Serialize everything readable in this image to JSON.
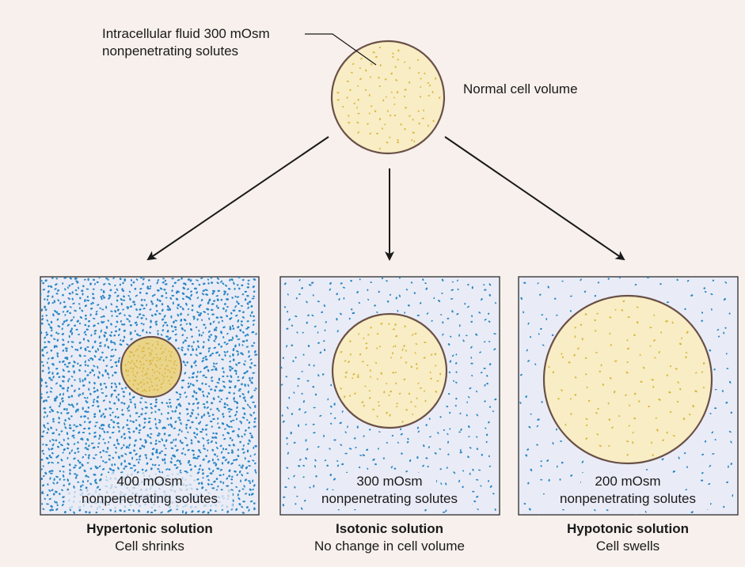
{
  "top": {
    "label_line1": "Intracellular fluid 300 mOsm",
    "label_line2": "nonpenetrating solutes",
    "volume_label": "Normal cell volume"
  },
  "panels": [
    {
      "conc": "400 mOsm",
      "solutes": "nonpenetrating solutes",
      "title": "Hypertonic solution",
      "subtitle": "Cell shrinks"
    },
    {
      "conc": "300 mOsm",
      "solutes": "nonpenetrating solutes",
      "title": "Isotonic solution",
      "subtitle": "No change in cell volume"
    },
    {
      "conc": "200 mOsm",
      "solutes": "nonpenetrating solutes",
      "title": "Hypotonic solution",
      "subtitle": "Cell swells"
    }
  ],
  "colors": {
    "background": "#f7f0ec",
    "box_fill": "#e9ecf6",
    "box_border": "#3a3a3a",
    "cell_fill": "#f8edc4",
    "cell_fill_shrunk": "#ead48a",
    "cell_border": "#6a5048",
    "extracellular_solute": "#2c86c4",
    "intracellular_solute": "#d9b63c",
    "arrow": "#1a1a1a"
  }
}
